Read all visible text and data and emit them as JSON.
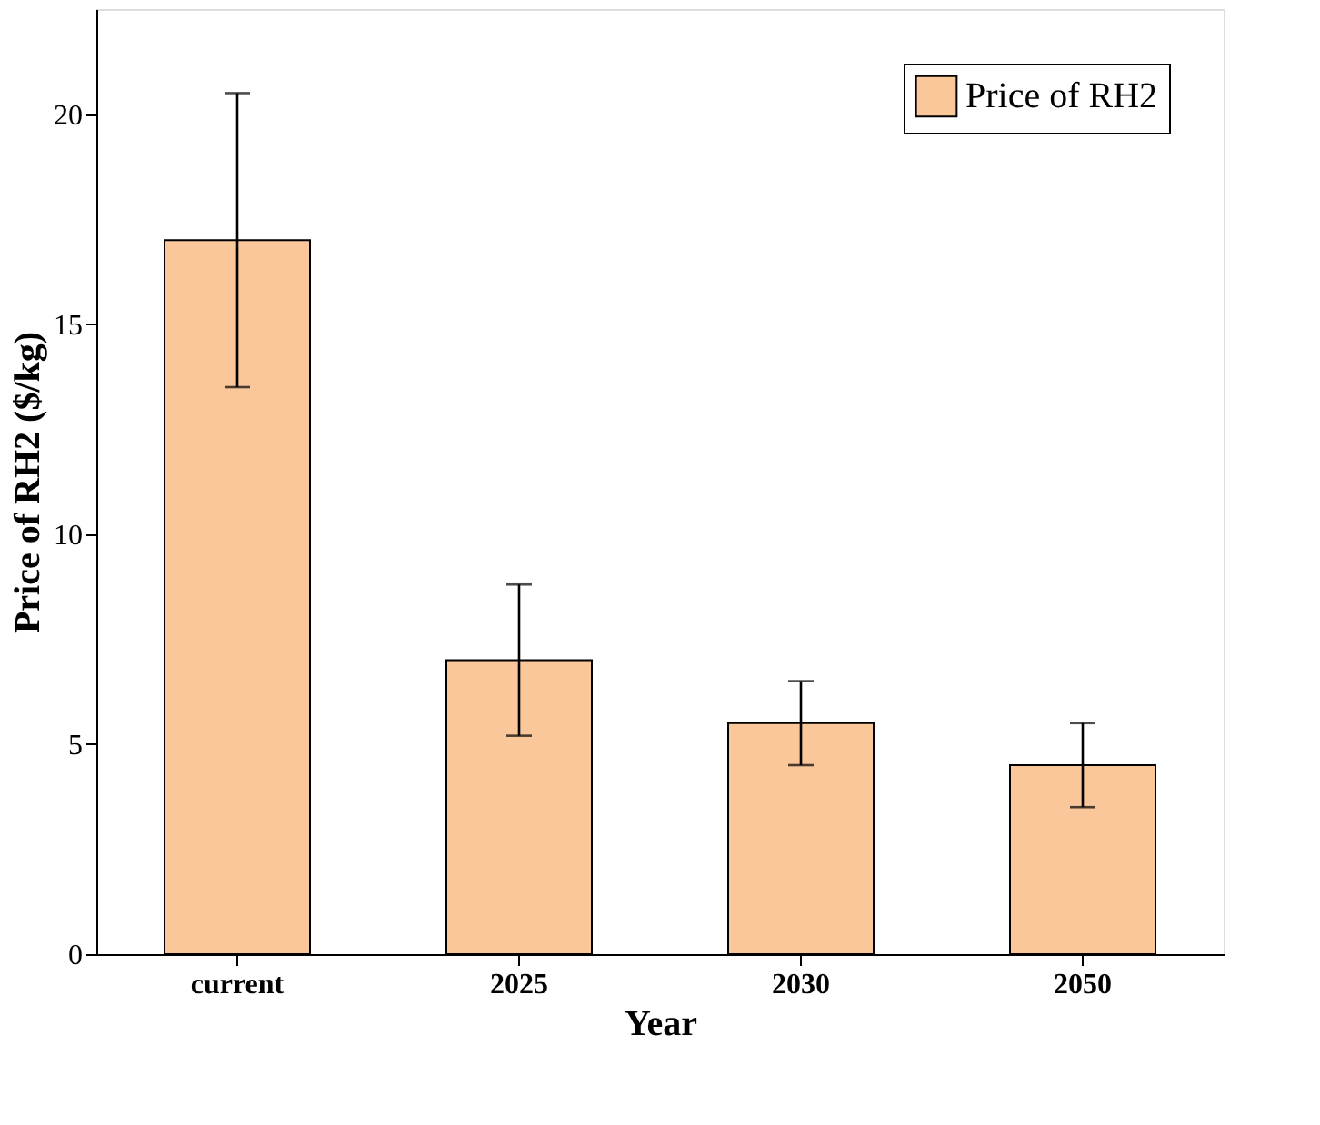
{
  "chart_data": {
    "type": "bar",
    "xlabel": "Year",
    "ylabel": "Price of RH2 ($/kg)",
    "categories": [
      "current",
      "2025",
      "2030",
      "2050"
    ],
    "series": [
      {
        "name": "Price of RH2",
        "color": "#f9c79a",
        "values": [
          17,
          7,
          5.5,
          4.5
        ],
        "errors": [
          [
            13.5,
            20.5
          ],
          [
            5.2,
            8.8
          ],
          [
            4.5,
            6.5
          ],
          [
            3.5,
            5.5
          ]
        ]
      }
    ],
    "ylim": [
      0,
      22.5
    ],
    "yticks": [
      0,
      5,
      10,
      15,
      20
    ],
    "grid": false,
    "legend": "top right"
  }
}
